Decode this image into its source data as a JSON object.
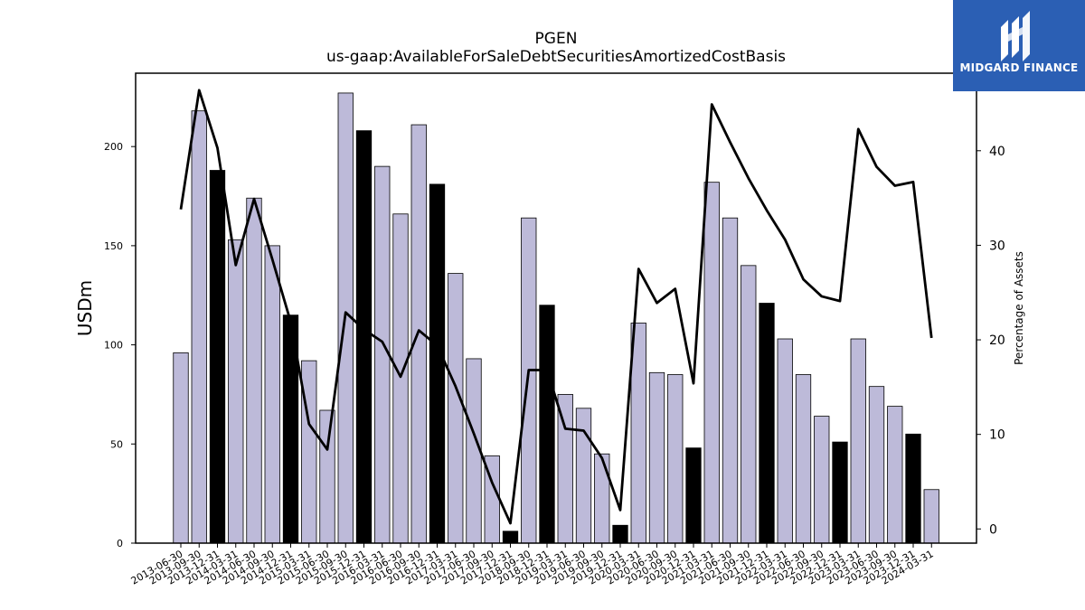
{
  "chart_data": {
    "type": "bar",
    "title": "PGEN",
    "subtitle": "us-gaap:AvailableForSaleDebtSecuritiesAmortizedCostBasis",
    "ylabel": "USDm",
    "ylabel_right": "Percentage of Assets",
    "ylim": [
      0,
      237
    ],
    "ylim_right": [
      -1.5,
      48.2
    ],
    "yticks": [
      0,
      50,
      100,
      150,
      200
    ],
    "yticks_right": [
      0,
      10,
      20,
      30,
      40
    ],
    "grid": false,
    "categories": [
      "2013-06-30",
      "2013-09-30",
      "2013-12-31",
      "2014-03-31",
      "2014-06-30",
      "2014-09-30",
      "2014-12-31",
      "2015-03-31",
      "2015-06-30",
      "2015-09-30",
      "2015-12-31",
      "2016-03-31",
      "2016-06-30",
      "2016-09-30",
      "2016-12-31",
      "2017-03-31",
      "2017-06-30",
      "2017-09-30",
      "2017-12-31",
      "2018-09-30",
      "2018-12-31",
      "2019-03-31",
      "2019-06-30",
      "2019-09-30",
      "2019-12-31",
      "2020-03-31",
      "2020-06-30",
      "2020-09-30",
      "2020-12-31",
      "2021-03-31",
      "2021-06-30",
      "2021-09-30",
      "2021-12-31",
      "2022-03-31",
      "2022-06-30",
      "2022-09-30",
      "2022-12-31",
      "2023-03-31",
      "2023-06-30",
      "2023-09-30",
      "2023-12-31",
      "2024-03-31"
    ],
    "series": [
      {
        "type": "bar",
        "values": [
          96,
          218,
          188,
          153,
          174,
          150,
          115,
          92,
          67,
          227,
          208,
          190,
          166,
          211,
          181,
          136,
          93,
          44,
          6,
          164,
          120,
          75,
          68,
          45,
          9,
          111,
          86,
          85,
          48,
          182,
          164,
          140,
          121,
          103,
          85,
          64,
          51,
          103,
          79,
          69,
          55,
          27
        ],
        "year_end": [
          false,
          false,
          true,
          false,
          false,
          false,
          true,
          false,
          false,
          false,
          true,
          false,
          false,
          false,
          true,
          false,
          false,
          false,
          true,
          false,
          true,
          false,
          false,
          false,
          true,
          false,
          false,
          false,
          true,
          false,
          false,
          false,
          true,
          false,
          false,
          false,
          true,
          false,
          false,
          false,
          true,
          false
        ],
        "color": "#bdbad9",
        "highlight_color": "#000000"
      },
      {
        "type": "line",
        "axis": "right",
        "values": [
          33.8,
          46.4,
          40.3,
          27.9,
          34.9,
          28.5,
          21.9,
          11.1,
          8.4,
          22.9,
          21.1,
          19.8,
          16.1,
          21.0,
          19.4,
          15.1,
          10.1,
          4.9,
          0.6,
          16.8,
          16.8,
          10.6,
          10.4,
          7.5,
          2.0,
          27.5,
          23.9,
          25.4,
          15.4,
          44.9,
          40.9,
          37.1,
          33.7,
          30.6,
          26.4,
          24.6,
          24.1,
          42.3,
          38.3,
          36.3,
          36.7,
          20.2
        ],
        "color": "#000000"
      }
    ]
  },
  "logo": {
    "text": "MIDGARD FINANCE",
    "color": "#2b5fb4"
  }
}
